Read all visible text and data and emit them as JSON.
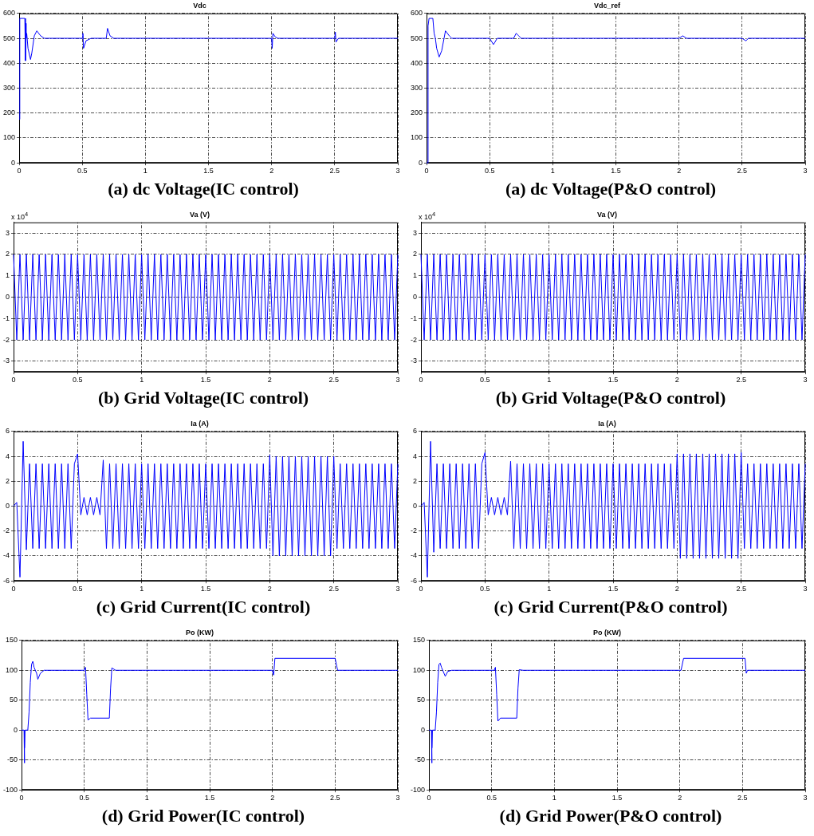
{
  "chart_data": [
    {
      "type": "line",
      "title": "Vdc",
      "annotations": [
        "(a) dc Voltage(IC control)"
      ],
      "xlim": [
        0,
        3
      ],
      "xticks": [
        0,
        0.5,
        1,
        1.5,
        2,
        2.5,
        3
      ],
      "ylim": [
        0,
        600
      ],
      "yticks": [
        0,
        100,
        200,
        300,
        400,
        500,
        600
      ],
      "grid": true,
      "series": [
        {
          "color": "#0000ff",
          "x": [
            0,
            0.005,
            0.045,
            0.05,
            0.052,
            0.055,
            0.06,
            0.07,
            0.09,
            0.1,
            0.12,
            0.14,
            0.17,
            0.2,
            0.5,
            0.505,
            0.51,
            0.53,
            0.57,
            0.69,
            0.7,
            0.72,
            0.75,
            2,
            2.005,
            2.01,
            2.03,
            2.05,
            2.5,
            2.505,
            2.51,
            2.53,
            3
          ],
          "values": [
            175,
            580,
            580,
            410,
            560,
            500,
            520,
            460,
            415,
            440,
            510,
            530,
            510,
            500,
            500,
            520,
            460,
            490,
            500,
            500,
            540,
            510,
            500,
            500,
            460,
            520,
            505,
            500,
            500,
            525,
            485,
            500,
            500
          ]
        }
      ]
    },
    {
      "type": "line",
      "title": "Vdc_ref",
      "annotations": [
        "(a) dc Voltage(P&O control)"
      ],
      "xlim": [
        0,
        3
      ],
      "xticks": [
        0,
        0.5,
        1,
        1.5,
        2,
        2.5,
        3
      ],
      "ylim": [
        0,
        600
      ],
      "yticks": [
        0,
        100,
        200,
        300,
        400,
        500,
        600
      ],
      "grid": true,
      "series": [
        {
          "color": "#0000ff",
          "x": [
            0,
            0.01,
            0.012,
            0.02,
            0.05,
            0.06,
            0.07,
            0.08,
            0.1,
            0.12,
            0.15,
            0.18,
            0.2,
            0.5,
            0.53,
            0.56,
            0.69,
            0.71,
            0.73,
            0.75,
            2,
            2.03,
            2.06,
            2.5,
            2.53,
            2.55,
            3
          ],
          "values": [
            0,
            0,
            550,
            580,
            580,
            520,
            500,
            460,
            425,
            450,
            530,
            510,
            500,
            500,
            475,
            500,
            500,
            520,
            510,
            500,
            500,
            510,
            500,
            500,
            490,
            500,
            500
          ]
        }
      ]
    },
    {
      "type": "line",
      "title": "Va (V)",
      "ylabel": "x 10$^{4}$",
      "annotations": [
        "(b) Grid Voltage(IC control)"
      ],
      "xlim": [
        0,
        3
      ],
      "xticks": [
        0,
        0.5,
        1,
        1.5,
        2,
        2.5,
        3
      ],
      "ylim": [
        -3.5,
        3.5
      ],
      "yticks": [
        -3,
        -2,
        -1,
        0,
        1,
        2,
        3
      ],
      "grid": true,
      "series": [
        {
          "color": "#0000ff",
          "x": [
            0,
            0.025,
            0.05,
            0.075,
            0.1,
            0.125,
            0.15,
            0.175,
            0.2,
            0.225,
            0.25,
            0.275,
            0.3,
            0.325,
            0.35,
            0.375,
            0.4,
            0.425,
            0.45,
            0.475,
            0.5,
            0.525,
            0.55,
            0.575,
            0.6,
            0.625,
            0.65,
            0.675,
            0.7,
            0.725,
            0.75,
            0.775,
            0.8,
            0.825,
            0.85,
            0.875,
            0.9,
            0.925,
            0.95,
            0.975,
            1,
            1.025,
            1.05,
            1.075,
            1.1,
            1.125,
            1.15,
            1.175,
            1.2,
            1.225,
            1.25,
            1.275,
            1.3,
            1.325,
            1.35,
            1.375,
            1.4,
            1.425,
            1.45,
            1.475,
            1.5,
            1.525,
            1.55,
            1.575,
            1.6,
            1.625,
            1.65,
            1.675,
            1.7,
            1.725,
            1.75,
            1.775,
            1.8,
            1.825,
            1.85,
            1.875,
            1.9,
            1.925,
            1.95,
            1.975,
            2,
            2.025,
            2.05,
            2.075,
            2.1,
            2.125,
            2.15,
            2.175,
            2.2,
            2.225,
            2.25,
            2.275,
            2.3,
            2.325,
            2.35,
            2.375,
            2.4,
            2.425,
            2.45,
            2.475,
            2.5,
            2.525,
            2.55,
            2.575,
            2.6,
            2.625,
            2.65,
            2.675,
            2.7,
            2.725,
            2.75,
            2.775,
            2.8,
            2.825,
            2.85,
            2.875,
            2.9,
            2.925,
            2.95,
            2.975,
            3
          ],
          "values": [
            2,
            -2,
            2,
            -2,
            2,
            -2,
            2,
            -2,
            2,
            -2,
            2,
            -2,
            2,
            -2,
            2,
            -2,
            2,
            -2,
            2,
            -2,
            2,
            -2,
            2,
            -2,
            2,
            -2,
            2,
            -2,
            2,
            -2,
            2,
            -2,
            2,
            -2,
            2,
            -2,
            2,
            -2,
            2,
            -2,
            2,
            -2,
            2,
            -2,
            2,
            -2,
            2,
            -2,
            2,
            -2,
            2,
            -2,
            2,
            -2,
            2,
            -2,
            2,
            -2,
            2,
            -2,
            2,
            -2,
            2,
            -2,
            2,
            -2,
            2,
            -2,
            2,
            -2,
            2,
            -2,
            2,
            -2,
            2,
            -2,
            2,
            -2,
            2,
            -2,
            2,
            -2,
            2,
            -2,
            2,
            -2,
            2,
            -2,
            2,
            -2,
            2,
            -2,
            2,
            -2,
            2,
            -2,
            2,
            -2,
            2,
            -2,
            2,
            -2,
            2,
            -2,
            2,
            -2,
            2,
            -2,
            2,
            -2,
            2,
            -2,
            2,
            -2,
            2,
            -2,
            2,
            -2,
            2,
            -2,
            2
          ]
        }
      ]
    },
    {
      "type": "line",
      "title": "Va (V)",
      "ylabel": "x 10$^{4}$",
      "annotations": [
        "(b) Grid Voltage(P&O control)"
      ],
      "xlim": [
        0,
        3
      ],
      "xticks": [
        0,
        0.5,
        1,
        1.5,
        2,
        2.5,
        3
      ],
      "ylim": [
        -3.5,
        3.5
      ],
      "yticks": [
        -3,
        -2,
        -1,
        0,
        1,
        2,
        3
      ],
      "grid": true,
      "series": [
        {
          "color": "#0000ff",
          "x": [
            0,
            0.025,
            0.05,
            0.075,
            0.1,
            0.125,
            0.15,
            0.175,
            0.2,
            0.225,
            0.25,
            0.275,
            0.3,
            0.325,
            0.35,
            0.375,
            0.4,
            0.425,
            0.45,
            0.475,
            0.5,
            0.525,
            0.55,
            0.575,
            0.6,
            0.625,
            0.65,
            0.675,
            0.7,
            0.725,
            0.75,
            0.775,
            0.8,
            0.825,
            0.85,
            0.875,
            0.9,
            0.925,
            0.95,
            0.975,
            1,
            1.025,
            1.05,
            1.075,
            1.1,
            1.125,
            1.15,
            1.175,
            1.2,
            1.225,
            1.25,
            1.275,
            1.3,
            1.325,
            1.35,
            1.375,
            1.4,
            1.425,
            1.45,
            1.475,
            1.5,
            1.525,
            1.55,
            1.575,
            1.6,
            1.625,
            1.65,
            1.675,
            1.7,
            1.725,
            1.75,
            1.775,
            1.8,
            1.825,
            1.85,
            1.875,
            1.9,
            1.925,
            1.95,
            1.975,
            2,
            2.025,
            2.05,
            2.075,
            2.1,
            2.125,
            2.15,
            2.175,
            2.2,
            2.225,
            2.25,
            2.275,
            2.3,
            2.325,
            2.35,
            2.375,
            2.4,
            2.425,
            2.45,
            2.475,
            2.5,
            2.525,
            2.55,
            2.575,
            2.6,
            2.625,
            2.65,
            2.675,
            2.7,
            2.725,
            2.75,
            2.775,
            2.8,
            2.825,
            2.85,
            2.875,
            2.9,
            2.925,
            2.95,
            2.975,
            3
          ],
          "values": [
            2,
            -2,
            2,
            -2,
            2,
            -2,
            2,
            -2,
            2,
            -2,
            2,
            -2,
            2,
            -2,
            2,
            -2,
            2,
            -2,
            2,
            -2,
            2,
            -2,
            2,
            -2,
            2,
            -2,
            2,
            -2,
            2,
            -2,
            2,
            -2,
            2,
            -2,
            2,
            -2,
            2,
            -2,
            2,
            -2,
            2,
            -2,
            2,
            -2,
            2,
            -2,
            2,
            -2,
            2,
            -2,
            2,
            -2,
            2,
            -2,
            2,
            -2,
            2,
            -2,
            2,
            -2,
            2,
            -2,
            2,
            -2,
            2,
            -2,
            2,
            -2,
            2,
            -2,
            2,
            -2,
            2,
            -2,
            2,
            -2,
            2,
            -2,
            2,
            -2,
            2,
            -2,
            2,
            -2,
            2,
            -2,
            2,
            -2,
            2,
            -2,
            2,
            -2,
            2,
            -2,
            2,
            -2,
            2,
            -2,
            2,
            -2,
            2,
            -2,
            2,
            -2,
            2,
            -2,
            2,
            -2,
            2,
            -2,
            2,
            -2,
            2,
            -2,
            2,
            -2,
            2,
            -2,
            2,
            -2,
            2
          ]
        }
      ]
    },
    {
      "type": "line",
      "title": "Ia (A)",
      "annotations": [
        "(c) Grid Current(IC control)"
      ],
      "xlim": [
        0,
        3
      ],
      "xticks": [
        0,
        0.5,
        1,
        1.5,
        2,
        2.5,
        3
      ],
      "ylim": [
        -6,
        6
      ],
      "yticks": [
        -6,
        -4,
        -2,
        0,
        2,
        4,
        6
      ],
      "grid": true,
      "series": [
        {
          "color": "#0000ff",
          "x": [
            0,
            0.025,
            0.05,
            0.075,
            0.1,
            0.125,
            0.15,
            0.175,
            0.2,
            0.225,
            0.25,
            0.275,
            0.3,
            0.325,
            0.35,
            0.375,
            0.4,
            0.425,
            0.45,
            0.475,
            0.5,
            0.525,
            0.55,
            0.575,
            0.6,
            0.625,
            0.65,
            0.675,
            0.7,
            0.725,
            0.75,
            0.775,
            0.8,
            0.825,
            0.85,
            0.875,
            0.9,
            0.925,
            0.95,
            0.975,
            1,
            1.025,
            1.05,
            1.075,
            1.1,
            1.125,
            1.15,
            1.175,
            1.2,
            1.225,
            1.25,
            1.275,
            1.3,
            1.325,
            1.35,
            1.375,
            1.4,
            1.425,
            1.45,
            1.475,
            1.5,
            1.525,
            1.55,
            1.575,
            1.6,
            1.625,
            1.65,
            1.675,
            1.7,
            1.725,
            1.75,
            1.775,
            1.8,
            1.825,
            1.85,
            1.875,
            1.9,
            1.925,
            1.95,
            1.975,
            2,
            2.025,
            2.05,
            2.075,
            2.1,
            2.125,
            2.15,
            2.175,
            2.2,
            2.225,
            2.25,
            2.275,
            2.3,
            2.325,
            2.35,
            2.375,
            2.4,
            2.425,
            2.45,
            2.475,
            2.5,
            2.525,
            2.55,
            2.575,
            2.6,
            2.625,
            2.65,
            2.675,
            2.7,
            2.725,
            2.75,
            2.775,
            2.8,
            2.825,
            2.85,
            2.875,
            2.9,
            2.925,
            2.95,
            2.975,
            3
          ],
          "values": [
            0,
            0.3,
            -5.7,
            5.2,
            -3.5,
            3.4,
            -3.4,
            3.4,
            -3.4,
            3.4,
            -3.4,
            3.4,
            -3.4,
            3.4,
            -3.4,
            3.4,
            -3.4,
            3.4,
            -3.4,
            3.4,
            4.2,
            -0.7,
            0.7,
            -0.7,
            0.7,
            -0.7,
            0.7,
            -0.7,
            3.7,
            -3.4,
            3.4,
            -3.4,
            3.4,
            -3.4,
            3.4,
            -3.4,
            3.4,
            -3.4,
            3.4,
            -3.4,
            3.4,
            -3.4,
            3.4,
            -3.4,
            3.4,
            -3.4,
            3.4,
            -3.4,
            3.4,
            -3.4,
            3.4,
            -3.4,
            3.4,
            -3.4,
            3.4,
            -3.4,
            3.4,
            -3.4,
            3.4,
            -3.4,
            3.4,
            -3.4,
            3.4,
            -3.4,
            3.4,
            -3.4,
            3.4,
            -3.4,
            3.4,
            -3.4,
            3.4,
            -3.4,
            3.4,
            -3.4,
            3.4,
            -3.4,
            3.4,
            -3.4,
            3.4,
            -3.4,
            4.1,
            -4,
            4,
            -4,
            4,
            -4,
            4,
            -4,
            4,
            -4,
            4,
            -4,
            4,
            -4,
            4,
            -4,
            4,
            -4,
            4,
            -4,
            4,
            -3.4,
            3.4,
            -3.4,
            3.4,
            -3.4,
            3.4,
            -3.4,
            3.4,
            -3.4,
            3.4,
            -3.4,
            3.4,
            -3.4,
            3.4,
            -3.4,
            3.4,
            -3.4,
            3.4,
            -3.4,
            3.4
          ]
        }
      ]
    },
    {
      "type": "line",
      "title": "Ia (A)",
      "annotations": [
        "(c) Grid Current(P&O control)"
      ],
      "xlim": [
        0,
        3
      ],
      "xticks": [
        0,
        0.5,
        1,
        1.5,
        2,
        2.5,
        3
      ],
      "ylim": [
        -6,
        6
      ],
      "yticks": [
        -6,
        -4,
        -2,
        0,
        2,
        4,
        6
      ],
      "grid": true,
      "series": [
        {
          "color": "#0000ff",
          "x": [
            0,
            0.025,
            0.05,
            0.075,
            0.1,
            0.125,
            0.15,
            0.175,
            0.2,
            0.225,
            0.25,
            0.275,
            0.3,
            0.325,
            0.35,
            0.375,
            0.4,
            0.425,
            0.45,
            0.475,
            0.5,
            0.525,
            0.55,
            0.575,
            0.6,
            0.625,
            0.65,
            0.675,
            0.7,
            0.725,
            0.75,
            0.775,
            0.8,
            0.825,
            0.85,
            0.875,
            0.9,
            0.925,
            0.95,
            0.975,
            1,
            1.025,
            1.05,
            1.075,
            1.1,
            1.125,
            1.15,
            1.175,
            1.2,
            1.225,
            1.25,
            1.275,
            1.3,
            1.325,
            1.35,
            1.375,
            1.4,
            1.425,
            1.45,
            1.475,
            1.5,
            1.525,
            1.55,
            1.575,
            1.6,
            1.625,
            1.65,
            1.675,
            1.7,
            1.725,
            1.75,
            1.775,
            1.8,
            1.825,
            1.85,
            1.875,
            1.9,
            1.925,
            1.95,
            1.975,
            2,
            2.025,
            2.05,
            2.075,
            2.1,
            2.125,
            2.15,
            2.175,
            2.2,
            2.225,
            2.25,
            2.275,
            2.3,
            2.325,
            2.35,
            2.375,
            2.4,
            2.425,
            2.45,
            2.475,
            2.5,
            2.525,
            2.55,
            2.575,
            2.6,
            2.625,
            2.65,
            2.675,
            2.7,
            2.725,
            2.75,
            2.775,
            2.8,
            2.825,
            2.85,
            2.875,
            2.9,
            2.925,
            2.95,
            2.975,
            3
          ],
          "values": [
            0,
            0.3,
            -5.7,
            5.2,
            -3.7,
            3.4,
            -3.4,
            3.4,
            -3.4,
            3.4,
            -3.4,
            3.4,
            -3.4,
            3.4,
            -3.4,
            3.4,
            -3.4,
            3.4,
            -3.4,
            3.4,
            4.3,
            -0.7,
            0.7,
            -0.7,
            0.7,
            -0.7,
            0.7,
            -0.7,
            3.6,
            -3.4,
            3.4,
            -3.4,
            3.4,
            -3.4,
            3.4,
            -3.4,
            3.4,
            -3.4,
            3.4,
            -3.4,
            3.4,
            -3.4,
            3.4,
            -3.4,
            3.4,
            -3.4,
            3.4,
            -3.4,
            3.4,
            -3.4,
            3.4,
            -3.4,
            3.4,
            -3.4,
            3.4,
            -3.4,
            3.4,
            -3.4,
            3.4,
            -3.4,
            3.4,
            -3.4,
            3.4,
            -3.4,
            3.4,
            -3.4,
            3.4,
            -3.4,
            3.4,
            -3.4,
            3.4,
            -3.4,
            3.4,
            -3.4,
            3.4,
            -3.4,
            3.4,
            -3.4,
            3.4,
            -3.4,
            4.2,
            -4.2,
            4.2,
            -4.2,
            4.2,
            -4.2,
            4.2,
            -4.2,
            4.2,
            -4.2,
            4.2,
            -4.2,
            4.2,
            -4.2,
            4.2,
            -4.2,
            4.2,
            -4.2,
            4.2,
            -4.2,
            4.3,
            -3.4,
            3.4,
            -3.4,
            3.4,
            -3.4,
            3.4,
            -3.4,
            3.4,
            -3.4,
            3.4,
            -3.4,
            3.4,
            -3.4,
            3.4,
            -3.4,
            3.4,
            -3.4,
            3.4,
            -3.4,
            3.4
          ]
        }
      ]
    },
    {
      "type": "line",
      "title": "Po (KW)",
      "annotations": [
        "(d) Grid Power(IC control)"
      ],
      "xlim": [
        0,
        3
      ],
      "xticks": [
        0,
        0.5,
        1,
        1.5,
        2,
        2.5,
        3
      ],
      "ylim": [
        -100,
        150
      ],
      "yticks": [
        -100,
        -50,
        0,
        50,
        100,
        150
      ],
      "grid": true,
      "series": [
        {
          "color": "#0000ff",
          "x": [
            0,
            0.02,
            0.022,
            0.025,
            0.028,
            0.05,
            0.06,
            0.07,
            0.08,
            0.09,
            0.1,
            0.12,
            0.13,
            0.15,
            0.18,
            0.5,
            0.51,
            0.52,
            0.53,
            0.55,
            0.7,
            0.71,
            0.72,
            0.75,
            2,
            2.01,
            2.02,
            2.5,
            2.52,
            3
          ],
          "values": [
            0,
            0,
            -55,
            -30,
            0,
            0,
            30,
            80,
            110,
            115,
            105,
            95,
            85,
            95,
            100,
            100,
            105,
            60,
            17,
            20,
            20,
            70,
            104,
            100,
            100,
            92,
            120,
            120,
            100,
            100
          ]
        }
      ]
    },
    {
      "type": "line",
      "title": "Po (KW)",
      "annotations": [
        "(d) Grid Power(P&O control)"
      ],
      "xlim": [
        0,
        3
      ],
      "xticks": [
        0,
        0.5,
        1,
        1.5,
        2,
        2.5,
        3
      ],
      "ylim": [
        -100,
        150
      ],
      "yticks": [
        -100,
        -50,
        0,
        50,
        100,
        150
      ],
      "grid": true,
      "series": [
        {
          "color": "#0000ff",
          "x": [
            0,
            0.02,
            0.022,
            0.025,
            0.028,
            0.05,
            0.06,
            0.07,
            0.08,
            0.09,
            0.1,
            0.12,
            0.13,
            0.15,
            0.18,
            0.52,
            0.53,
            0.54,
            0.55,
            0.57,
            0.7,
            0.71,
            0.72,
            0.75,
            2,
            2.01,
            2.03,
            2.5,
            2.52,
            2.53,
            2.54,
            3
          ],
          "values": [
            0,
            0,
            -55,
            -30,
            0,
            0,
            30,
            80,
            110,
            112,
            105,
            95,
            90,
            98,
            100,
            100,
            105,
            60,
            15,
            20,
            20,
            70,
            101,
            100,
            100,
            100,
            120,
            120,
            120,
            95,
            100,
            100
          ]
        }
      ]
    }
  ]
}
